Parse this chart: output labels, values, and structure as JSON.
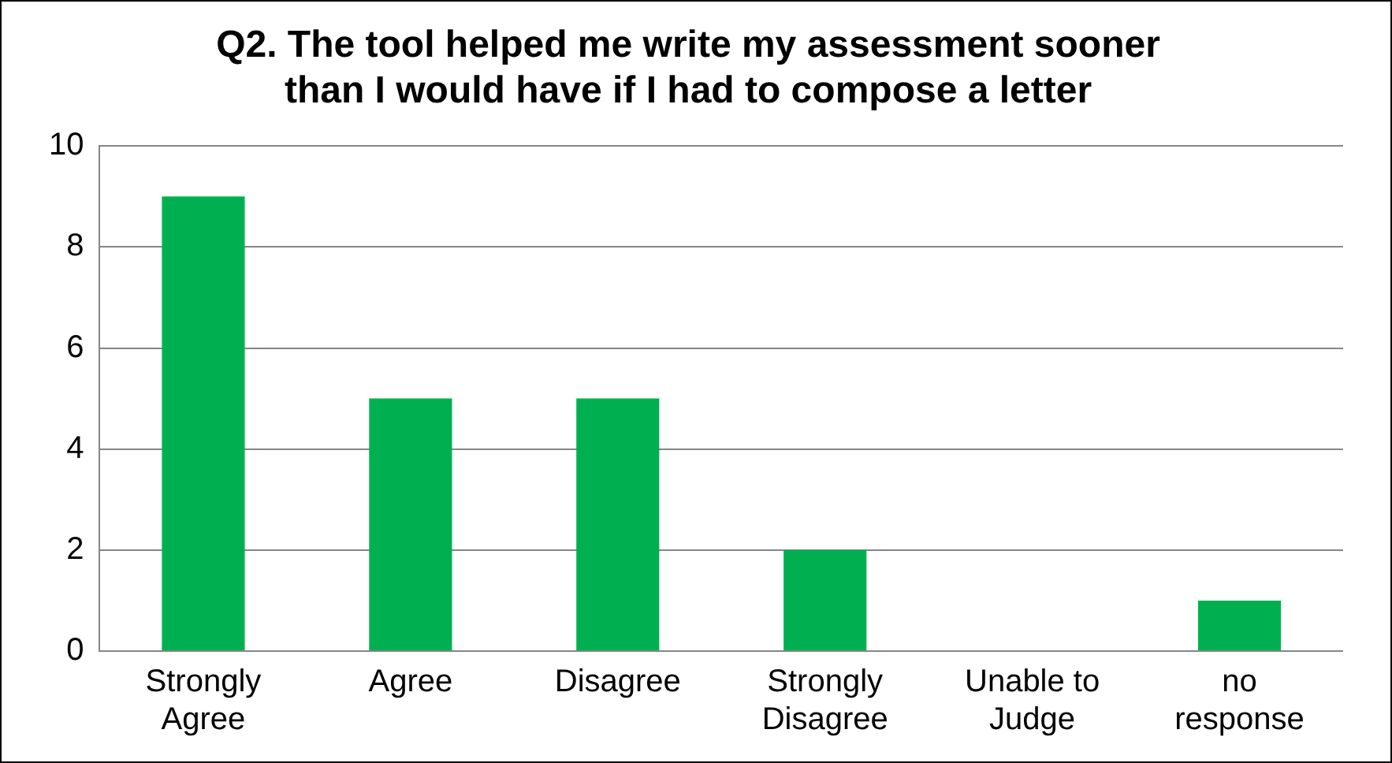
{
  "chart_data": {
    "type": "bar",
    "title": "Q2. The tool helped me write my assessment sooner than I would have if I had to compose a letter",
    "categories": [
      "Strongly Agree",
      "Agree",
      "Disagree",
      "Strongly Disagree",
      "Unable to Judge",
      "no response"
    ],
    "values": [
      9,
      5,
      5,
      2,
      0,
      1
    ],
    "color": "#00b050",
    "ylim": [
      0,
      10
    ],
    "yticks": [
      0,
      2,
      4,
      6,
      8,
      10
    ],
    "grid": "y",
    "legend": false
  }
}
